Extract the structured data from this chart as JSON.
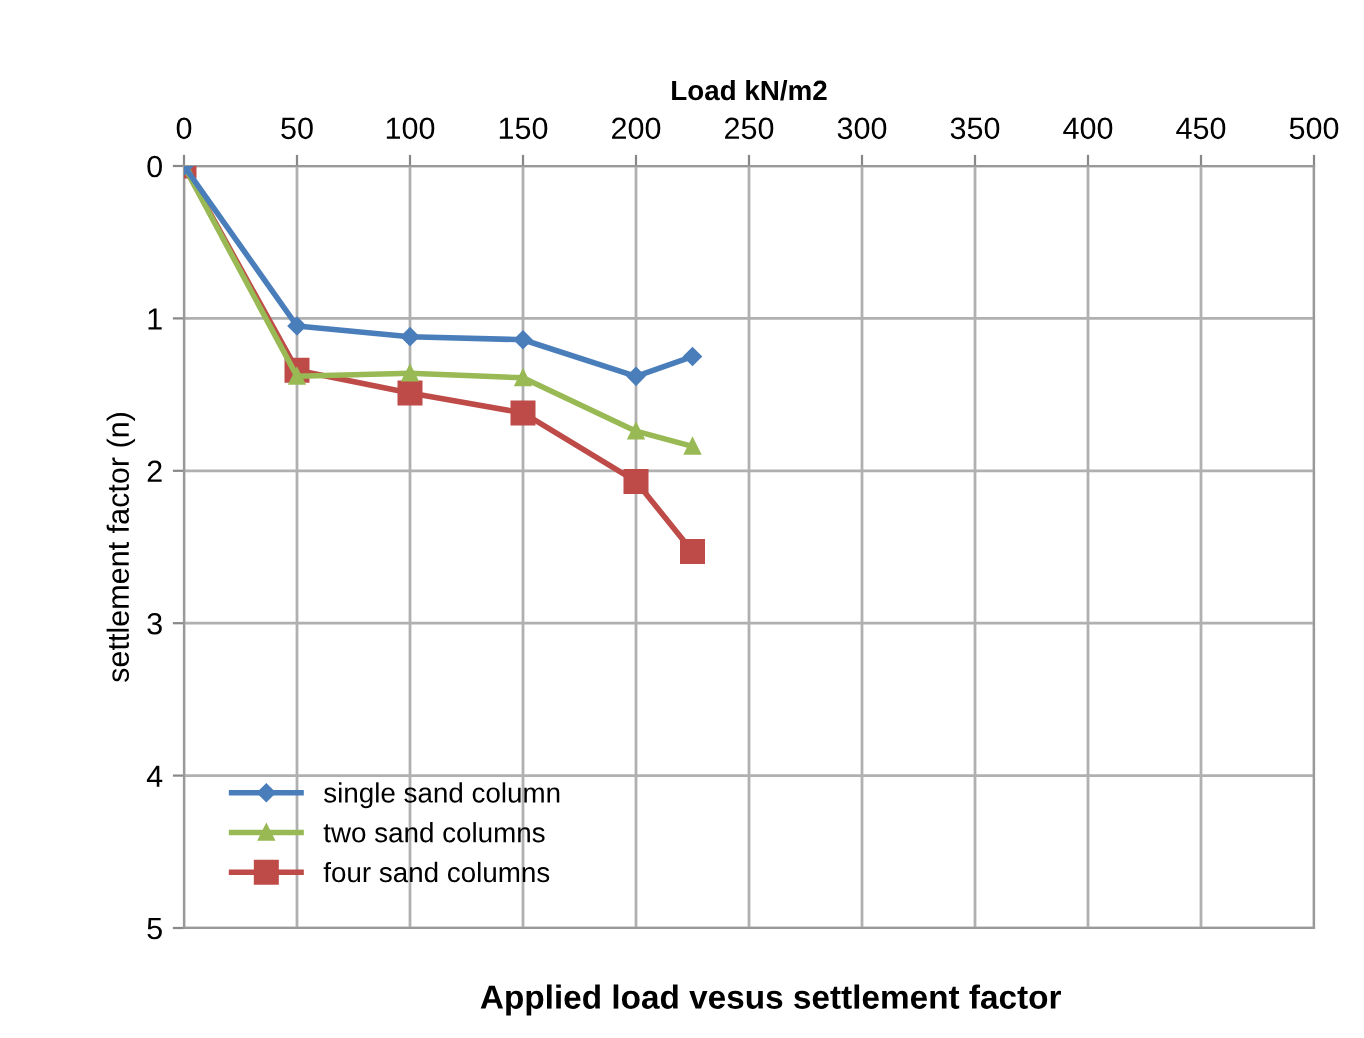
{
  "chart_data": {
    "type": "line",
    "title": "Applied load vesus settlement factor",
    "xlabel": "Load kN/m2",
    "ylabel": "settlement factor (n)",
    "x": [
      0,
      50,
      100,
      150,
      200,
      225
    ],
    "series": [
      {
        "name": "single sand column",
        "color": "#4a7ebb",
        "marker": "diamond",
        "values": [
          0,
          1.05,
          1.12,
          1.14,
          1.38,
          1.25
        ]
      },
      {
        "name": "two sand columns",
        "color": "#98b954",
        "marker": "triangle",
        "values": [
          0,
          1.38,
          1.36,
          1.39,
          1.74,
          1.84
        ]
      },
      {
        "name": "four sand columns",
        "color": "#be4b48",
        "marker": "square",
        "values": [
          0,
          1.34,
          1.49,
          1.62,
          2.07,
          2.53
        ]
      }
    ],
    "xlim": [
      0,
      500
    ],
    "xticks": [
      0,
      50,
      100,
      150,
      200,
      250,
      300,
      350,
      400,
      450,
      500
    ],
    "ylim": [
      5,
      0
    ],
    "yticks": [
      0,
      1,
      2,
      3,
      4,
      5
    ],
    "grid": true,
    "legend": "bottom left",
    "line_style": "solid"
  }
}
